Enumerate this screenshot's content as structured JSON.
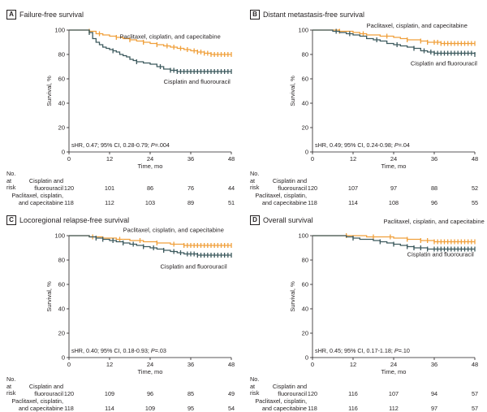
{
  "colors": {
    "pcc": "#f0a03c",
    "cf": "#3d5a5e",
    "axis": "#231f20"
  },
  "risk_header": "No. at risk",
  "group_labels": {
    "cf": [
      "Cisplatin and",
      "fluorouracil"
    ],
    "pcc": [
      "Paclitaxel, cisplatin,",
      "and capecitabine"
    ]
  },
  "chart_data": [
    {
      "id": "A",
      "title": "Failure-free survival",
      "type": "line",
      "xlabel": "Time, mo",
      "ylabel": "Survival, %",
      "xlim": [
        0,
        48
      ],
      "ylim": [
        0,
        100
      ],
      "xticks": [
        0,
        12,
        24,
        36,
        48
      ],
      "yticks": [
        0,
        20,
        40,
        60,
        80,
        100
      ],
      "annotation": "sHR, 0.47; 95% CI, 0.28-0.79; ",
      "p_label": "P",
      "p_value": "=.004",
      "series": [
        {
          "name": "Paclitaxel, cisplatin, and capecitabine",
          "key": "pcc",
          "x": [
            0,
            6,
            8,
            10,
            12,
            14,
            16,
            18,
            20,
            22,
            24,
            26,
            28,
            30,
            32,
            34,
            36,
            38,
            40,
            42,
            44,
            48
          ],
          "y": [
            100,
            99,
            97,
            96,
            95,
            94,
            93,
            92,
            91,
            90,
            89,
            88,
            87,
            86,
            85,
            84,
            83,
            82,
            81,
            80,
            80,
            80
          ],
          "censor_x": [
            6,
            9,
            14,
            18,
            22,
            26,
            29,
            31,
            33,
            35,
            37,
            38,
            39,
            40,
            41,
            42,
            43,
            44,
            45,
            46,
            47,
            48
          ],
          "label_pos": [
            15,
            93
          ]
        },
        {
          "name": "Cisplatin and fluorouracil",
          "key": "cf",
          "x": [
            0,
            6,
            7,
            8,
            9,
            10,
            11,
            12,
            13,
            14,
            15,
            16,
            17,
            18,
            19,
            20,
            22,
            24,
            26,
            28,
            30,
            32,
            48
          ],
          "y": [
            100,
            98,
            93,
            90,
            88,
            86,
            85,
            84,
            83,
            82,
            80,
            79,
            78,
            76,
            75,
            74,
            73,
            72,
            70,
            68,
            67,
            66,
            66
          ],
          "censor_x": [
            6,
            13,
            20,
            27,
            30,
            31,
            32,
            33,
            34,
            35,
            36,
            37,
            38,
            39,
            40,
            41,
            42,
            43,
            44,
            45,
            46,
            47,
            48
          ],
          "label_pos": [
            28,
            56
          ]
        }
      ],
      "risk": {
        "cf": [
          120,
          101,
          86,
          76,
          44
        ],
        "pcc": [
          118,
          112,
          103,
          89,
          51
        ]
      }
    },
    {
      "id": "B",
      "title": "Distant metastasis-free survival",
      "type": "line",
      "xlabel": "Time, mo",
      "ylabel": "Survival, %",
      "xlim": [
        0,
        48
      ],
      "ylim": [
        0,
        100
      ],
      "xticks": [
        0,
        12,
        24,
        36,
        48
      ],
      "yticks": [
        0,
        20,
        40,
        60,
        80,
        100
      ],
      "annotation": "sHR, 0.49; 95% CI, 0.24-0.98; ",
      "p_label": "P",
      "p_value": "=.04",
      "series": [
        {
          "name": "Paclitaxel, cisplatin, and capecitabine",
          "key": "pcc",
          "x": [
            0,
            6,
            8,
            12,
            14,
            16,
            18,
            20,
            24,
            26,
            28,
            30,
            32,
            34,
            36,
            38,
            40,
            42,
            48
          ],
          "y": [
            100,
            100,
            99,
            98,
            97,
            96,
            96,
            95,
            94,
            93,
            92,
            92,
            91,
            90,
            90,
            89,
            89,
            89,
            89
          ],
          "censor_x": [
            8,
            15,
            22,
            28,
            32,
            34,
            36,
            37,
            38,
            39,
            40,
            41,
            42,
            43,
            44,
            45,
            46,
            47,
            48
          ],
          "label_pos": [
            16,
            102
          ]
        },
        {
          "name": "Cisplatin and fluorouracil",
          "key": "cf",
          "x": [
            0,
            6,
            8,
            10,
            12,
            14,
            16,
            18,
            20,
            22,
            24,
            26,
            28,
            30,
            32,
            34,
            36,
            48
          ],
          "y": [
            100,
            99,
            98,
            97,
            96,
            95,
            93,
            92,
            91,
            89,
            88,
            87,
            86,
            85,
            83,
            82,
            81,
            80
          ],
          "censor_x": [
            7,
            11,
            19,
            25,
            30,
            33,
            35,
            36,
            37,
            38,
            39,
            40,
            41,
            42,
            43,
            44,
            45,
            46,
            47,
            48
          ],
          "label_pos": [
            29,
            71
          ]
        }
      ],
      "risk": {
        "cf": [
          120,
          107,
          97,
          88,
          52
        ],
        "pcc": [
          118,
          114,
          108,
          96,
          55
        ]
      }
    },
    {
      "id": "C",
      "title": "Locoregional relapse-free survival",
      "type": "line",
      "xlabel": "Time, mo",
      "ylabel": "Survival, %",
      "xlim": [
        0,
        48
      ],
      "ylim": [
        0,
        100
      ],
      "xticks": [
        0,
        12,
        24,
        36,
        48
      ],
      "yticks": [
        0,
        20,
        40,
        60,
        80,
        100
      ],
      "annotation": "sHR, 0.40; 95% CI, 0.18-0.93; ",
      "p_label": "P",
      "p_value": "=.03",
      "series": [
        {
          "name": "Paclitaxel, cisplatin, and capecitabine",
          "key": "pcc",
          "x": [
            0,
            6,
            10,
            14,
            18,
            22,
            26,
            30,
            34,
            48
          ],
          "y": [
            100,
            99,
            98,
            97,
            96,
            95,
            94,
            93,
            92,
            92
          ],
          "censor_x": [
            7,
            15,
            21,
            26,
            31,
            34,
            35,
            36,
            37,
            38,
            39,
            40,
            41,
            42,
            43,
            44,
            45,
            46,
            47,
            48
          ],
          "label_pos": [
            16,
            103
          ]
        },
        {
          "name": "Cisplatin and fluorouracil",
          "key": "cf",
          "x": [
            0,
            6,
            8,
            10,
            12,
            14,
            16,
            18,
            20,
            22,
            24,
            26,
            28,
            30,
            32,
            34,
            36,
            38,
            40,
            48
          ],
          "y": [
            100,
            99,
            98,
            97,
            96,
            95,
            94,
            93,
            92,
            91,
            90,
            89,
            88,
            87,
            86,
            85,
            85,
            84,
            84,
            84
          ],
          "censor_x": [
            8,
            10,
            13,
            16,
            19,
            22,
            25,
            28,
            31,
            33,
            35,
            36,
            37,
            38,
            39,
            40,
            41,
            42,
            43,
            44,
            45,
            46,
            47,
            48
          ],
          "label_pos": [
            27,
            73
          ]
        }
      ],
      "risk": {
        "cf": [
          120,
          109,
          96,
          85,
          49
        ],
        "pcc": [
          118,
          114,
          109,
          95,
          54
        ]
      }
    },
    {
      "id": "D",
      "title": "Overall survival",
      "type": "line",
      "xlabel": "Time, mo",
      "ylabel": "Survival, %",
      "xlim": [
        0,
        48
      ],
      "ylim": [
        0,
        100
      ],
      "xticks": [
        0,
        12,
        24,
        36,
        48
      ],
      "yticks": [
        0,
        20,
        40,
        60,
        80,
        100
      ],
      "annotation": "sHR, 0.45; 95% CI, 0.17-1.18; ",
      "p_label": "P",
      "p_value": "=.10",
      "series": [
        {
          "name": "Paclitaxel, cisplatin, and capecitabine",
          "key": "pcc",
          "x": [
            0,
            12,
            16,
            20,
            24,
            28,
            32,
            36,
            48
          ],
          "y": [
            100,
            100,
            99,
            99,
            98,
            97,
            96,
            95,
            95
          ],
          "censor_x": [
            10,
            18,
            23,
            28,
            32,
            34,
            36,
            37,
            38,
            39,
            40,
            41,
            42,
            43,
            44,
            45,
            46,
            47,
            48
          ],
          "label_pos": [
            21,
            110
          ]
        },
        {
          "name": "Cisplatin and fluorouracil",
          "key": "cf",
          "x": [
            0,
            10,
            12,
            14,
            18,
            20,
            22,
            24,
            26,
            28,
            30,
            32,
            34,
            48
          ],
          "y": [
            100,
            99,
            98,
            97,
            96,
            95,
            94,
            93,
            92,
            91,
            90,
            90,
            89,
            89
          ],
          "censor_x": [
            12,
            20,
            24,
            28,
            30,
            32,
            34,
            36,
            37,
            38,
            39,
            40,
            41,
            42,
            43,
            44,
            45,
            46,
            47,
            48
          ],
          "label_pos": [
            28,
            83
          ]
        }
      ],
      "risk": {
        "cf": [
          120,
          116,
          107,
          94,
          57
        ],
        "pcc": [
          118,
          116,
          112,
          97,
          57
        ]
      }
    }
  ]
}
